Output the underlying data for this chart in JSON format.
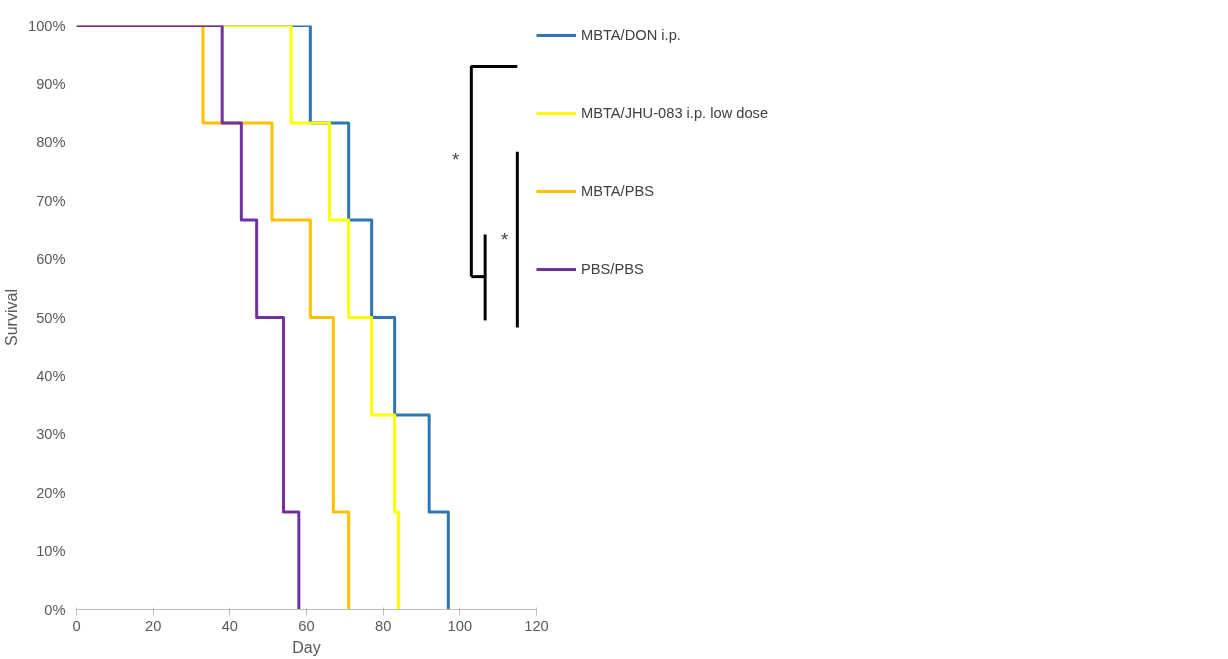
{
  "chart_data": {
    "type": "step",
    "xlabel": "Day",
    "ylabel": "Survival",
    "xlim": [
      0,
      120
    ],
    "xticks": [
      0,
      20,
      40,
      60,
      80,
      100,
      120
    ],
    "ylim": [
      0,
      100
    ],
    "yticks": [
      {
        "value": 0,
        "label": "0%"
      },
      {
        "value": 10,
        "label": "10%"
      },
      {
        "value": 20,
        "label": "20%"
      },
      {
        "value": 30,
        "label": "30%"
      },
      {
        "value": 40,
        "label": "40%"
      },
      {
        "value": 50,
        "label": "50%"
      },
      {
        "value": 60,
        "label": "60%"
      },
      {
        "value": 70,
        "label": "70%"
      },
      {
        "value": 80,
        "label": "80%"
      },
      {
        "value": 90,
        "label": "90%"
      },
      {
        "value": 100,
        "label": "100%"
      }
    ],
    "grid": false,
    "legend": "right",
    "line_style": "solid",
    "marker": "none",
    "annotations": [
      "*",
      "*"
    ],
    "series": [
      {
        "name": "MBTA/DON i.p.",
        "color": "#2e75b6",
        "x": [
          0,
          61,
          71,
          77,
          83,
          92,
          97
        ],
        "values": [
          100,
          83.3,
          66.7,
          50,
          33.3,
          16.7,
          0
        ]
      },
      {
        "name": "MBTA/JHU-083 i.p. low dose",
        "color": "#ffff00",
        "x": [
          0,
          56,
          66,
          71,
          77,
          83,
          84
        ],
        "values": [
          100,
          83.3,
          66.7,
          50,
          33.3,
          16.7,
          0
        ]
      },
      {
        "name": "MBTA/PBS",
        "color": "#ffc000",
        "x": [
          0,
          33,
          51,
          61,
          67,
          71
        ],
        "values": [
          100,
          83.3,
          66.7,
          50,
          16.7,
          0
        ]
      },
      {
        "name": "PBS/PBS",
        "color": "#7030a0",
        "x": [
          0,
          38,
          43,
          47,
          54,
          58
        ],
        "values": [
          100,
          83.3,
          66.7,
          50,
          16.7,
          0
        ]
      }
    ]
  }
}
